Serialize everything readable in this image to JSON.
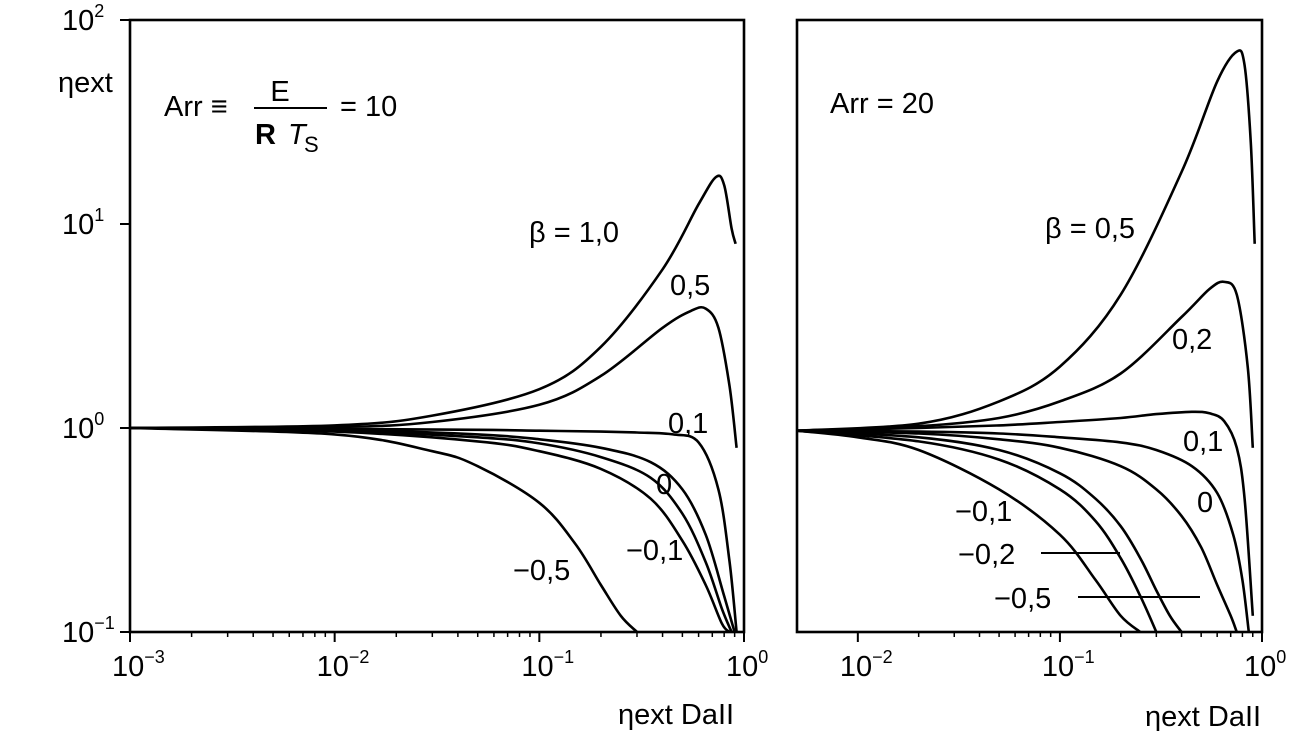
{
  "chart_data": [
    {
      "type": "line",
      "title": "",
      "xlabel": "ηext DaII",
      "ylabel": "ηext",
      "xscale": "log",
      "yscale": "log",
      "xlim": [
        0.001,
        1.0
      ],
      "ylim": [
        0.1,
        100
      ],
      "x_ticks": [
        {
          "base": "10",
          "exp": "−3",
          "value": 0.001
        },
        {
          "base": "10",
          "exp": "−2",
          "value": 0.01
        },
        {
          "base": "10",
          "exp": "−1",
          "value": 0.1
        },
        {
          "base": "10",
          "exp": "0",
          "value": 1
        }
      ],
      "y_ticks": [
        {
          "base": "10",
          "exp": "−1",
          "value": 0.1
        },
        {
          "base": "10",
          "exp": "0",
          "value": 1
        },
        {
          "base": "10",
          "exp": "1",
          "value": 10
        },
        {
          "base": "10",
          "exp": "2",
          "value": 100
        }
      ],
      "annotation": {
        "lhs": "Arr ≡",
        "num": "E",
        "den_bold": "R",
        "den_T": "T",
        "den_sub": "S",
        "rhs": "= 10"
      },
      "grid": false,
      "series": [
        {
          "name": "β = 1,0",
          "x": [
            0.001,
            0.01,
            0.03,
            0.1,
            0.2,
            0.4,
            0.6,
            0.73,
            0.8,
            0.87,
            0.91
          ],
          "y": [
            1.0,
            1.03,
            1.15,
            1.55,
            2.5,
            6.0,
            12.5,
            17.0,
            15.5,
            9.5,
            8.0
          ]
        },
        {
          "name": "0,5",
          "x": [
            0.001,
            0.01,
            0.03,
            0.1,
            0.2,
            0.4,
            0.55,
            0.65,
            0.75,
            0.85,
            0.92
          ],
          "y": [
            1.0,
            1.01,
            1.07,
            1.3,
            1.8,
            3.1,
            3.75,
            3.85,
            3.1,
            1.6,
            0.8
          ]
        },
        {
          "name": "0,1",
          "x": [
            0.001,
            0.01,
            0.05,
            0.1,
            0.2,
            0.3,
            0.45,
            0.6,
            0.75,
            0.85,
            0.92
          ],
          "y": [
            1.0,
            0.99,
            0.98,
            0.97,
            0.96,
            0.95,
            0.93,
            0.85,
            0.5,
            0.22,
            0.1
          ]
        },
        {
          "name": "",
          "x": [
            0.001,
            0.01,
            0.05,
            0.1,
            0.2,
            0.35,
            0.5,
            0.65,
            0.8,
            0.9
          ],
          "y": [
            1.0,
            0.98,
            0.93,
            0.88,
            0.8,
            0.68,
            0.5,
            0.3,
            0.15,
            0.1
          ]
        },
        {
          "name": "0",
          "x": [
            0.001,
            0.01,
            0.05,
            0.1,
            0.2,
            0.35,
            0.5,
            0.65,
            0.78,
            0.87
          ],
          "y": [
            1.0,
            0.97,
            0.9,
            0.84,
            0.72,
            0.57,
            0.38,
            0.22,
            0.13,
            0.1
          ]
        },
        {
          "name": "−0,1",
          "x": [
            0.001,
            0.01,
            0.05,
            0.1,
            0.2,
            0.35,
            0.5,
            0.65,
            0.78,
            0.85
          ],
          "y": [
            1.0,
            0.96,
            0.86,
            0.77,
            0.63,
            0.45,
            0.28,
            0.17,
            0.11,
            0.1
          ]
        },
        {
          "name": "−0,5",
          "x": [
            0.001,
            0.01,
            0.03,
            0.05,
            0.1,
            0.15,
            0.2,
            0.25,
            0.3
          ],
          "y": [
            1.0,
            0.93,
            0.77,
            0.65,
            0.43,
            0.27,
            0.17,
            0.12,
            0.1
          ]
        }
      ]
    },
    {
      "type": "line",
      "title": "",
      "xlabel": "ηext DaII",
      "ylabel": "",
      "xscale": "log",
      "yscale": "log",
      "xlim": [
        0.005,
        1.0
      ],
      "ylim": [
        0.1,
        100
      ],
      "x_ticks": [
        {
          "base": "10",
          "exp": "−2",
          "value": 0.01
        },
        {
          "base": "10",
          "exp": "−1",
          "value": 0.1
        },
        {
          "base": "10",
          "exp": "0",
          "value": 1
        }
      ],
      "annotation": {
        "text": "Arr = 20"
      },
      "grid": false,
      "series": [
        {
          "name": "β = 0,5",
          "x": [
            0.005,
            0.02,
            0.05,
            0.1,
            0.2,
            0.4,
            0.6,
            0.75,
            0.82,
            0.88,
            0.92
          ],
          "y": [
            0.97,
            1.05,
            1.35,
            2.0,
            4.5,
            18.0,
            50.0,
            70.0,
            60.0,
            25.0,
            8.0
          ]
        },
        {
          "name": "0,2",
          "x": [
            0.005,
            0.02,
            0.05,
            0.1,
            0.2,
            0.4,
            0.55,
            0.65,
            0.75,
            0.85,
            0.9
          ],
          "y": [
            0.97,
            1.02,
            1.12,
            1.35,
            1.85,
            3.5,
            4.8,
            5.2,
            4.5,
            2.0,
            0.8
          ]
        },
        {
          "name": "",
          "x": [
            0.005,
            0.02,
            0.05,
            0.1,
            0.2,
            0.3,
            0.45,
            0.55,
            0.65,
            0.75,
            0.82,
            0.9
          ],
          "y": [
            0.97,
            1.0,
            1.03,
            1.07,
            1.12,
            1.17,
            1.2,
            1.18,
            1.08,
            0.8,
            0.45,
            0.12
          ]
        },
        {
          "name": "0,1",
          "x": [
            0.005,
            0.02,
            0.05,
            0.1,
            0.2,
            0.3,
            0.45,
            0.6,
            0.72,
            0.8,
            0.86
          ],
          "y": [
            0.97,
            0.96,
            0.94,
            0.9,
            0.85,
            0.78,
            0.65,
            0.48,
            0.3,
            0.18,
            0.1
          ]
        },
        {
          "name": "0",
          "x": [
            0.005,
            0.02,
            0.05,
            0.1,
            0.2,
            0.3,
            0.4,
            0.5,
            0.6,
            0.7,
            0.75
          ],
          "y": [
            0.97,
            0.94,
            0.88,
            0.8,
            0.65,
            0.5,
            0.37,
            0.26,
            0.17,
            0.12,
            0.1
          ]
        },
        {
          "name": "−0,1",
          "x": [
            0.005,
            0.02,
            0.05,
            0.1,
            0.15,
            0.2,
            0.25,
            0.3,
            0.35,
            0.4
          ],
          "y": [
            0.97,
            0.9,
            0.78,
            0.6,
            0.45,
            0.33,
            0.23,
            0.16,
            0.12,
            0.1
          ]
        },
        {
          "name": "−0,2",
          "x": [
            0.005,
            0.02,
            0.05,
            0.1,
            0.15,
            0.2,
            0.25,
            0.3
          ],
          "y": [
            0.97,
            0.86,
            0.7,
            0.5,
            0.35,
            0.23,
            0.15,
            0.1
          ]
        },
        {
          "name": "−0,5",
          "x": [
            0.005,
            0.01,
            0.02,
            0.05,
            0.1,
            0.15,
            0.2,
            0.25
          ],
          "y": [
            0.97,
            0.9,
            0.78,
            0.5,
            0.3,
            0.18,
            0.12,
            0.1
          ]
        }
      ]
    }
  ]
}
